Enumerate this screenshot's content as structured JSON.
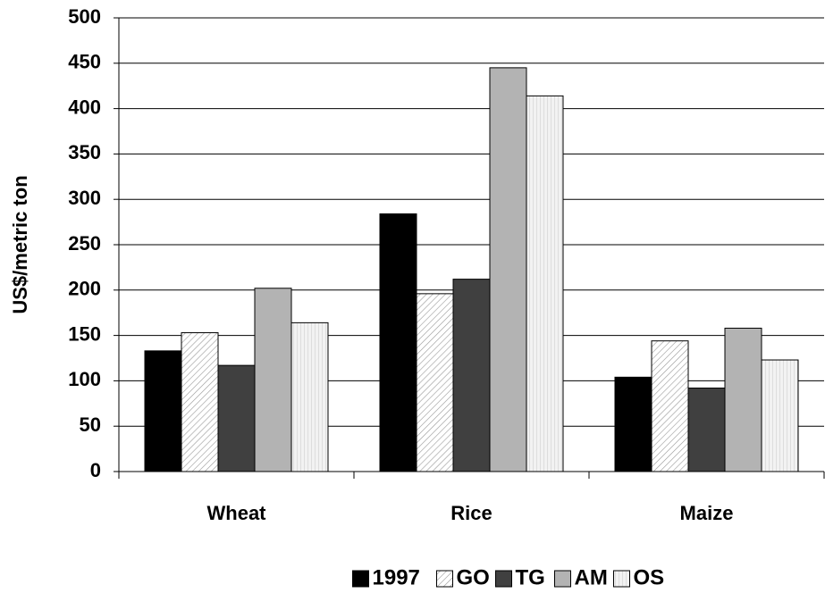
{
  "chart_data": {
    "type": "bar",
    "y_label": "US$/metric ton",
    "categories": [
      "Wheat",
      "Rice",
      "Maize"
    ],
    "series": [
      {
        "name": "1997",
        "color": "#000000",
        "values": [
          133,
          284,
          104
        ]
      },
      {
        "name": "GO",
        "color": "#ffffff",
        "hatch": "diagonal",
        "values": [
          153,
          196,
          144
        ]
      },
      {
        "name": "TG",
        "color": "#404040",
        "values": [
          117,
          212,
          92
        ]
      },
      {
        "name": "AM",
        "color": "#b3b3b3",
        "values": [
          202,
          445,
          158
        ]
      },
      {
        "name": "OS",
        "color": "#eeeeee",
        "hatch": "vertical",
        "values": [
          164,
          414,
          123
        ]
      }
    ],
    "ylim": [
      0,
      500
    ],
    "yticks": [
      0,
      50,
      100,
      150,
      200,
      250,
      300,
      350,
      400,
      450,
      500
    ],
    "grid": true,
    "legend": "bottom"
  }
}
